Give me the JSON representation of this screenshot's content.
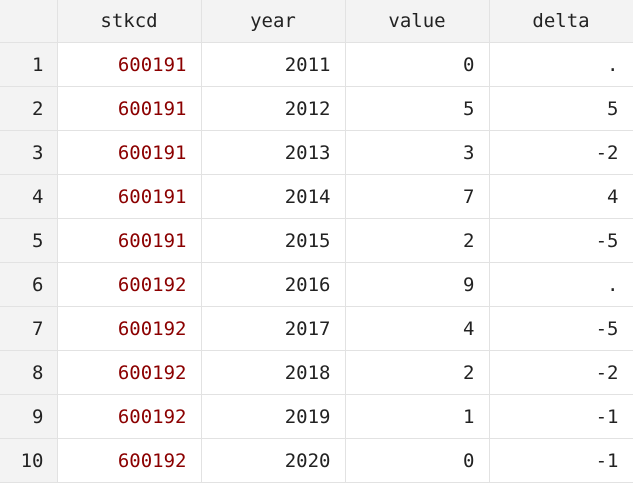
{
  "columns": [
    "stkcd",
    "year",
    "value",
    "delta"
  ],
  "rows": [
    {
      "n": "1",
      "stkcd": "600191",
      "year": "2011",
      "value": "0",
      "delta": "."
    },
    {
      "n": "2",
      "stkcd": "600191",
      "year": "2012",
      "value": "5",
      "delta": "5"
    },
    {
      "n": "3",
      "stkcd": "600191",
      "year": "2013",
      "value": "3",
      "delta": "-2"
    },
    {
      "n": "4",
      "stkcd": "600191",
      "year": "2014",
      "value": "7",
      "delta": "4"
    },
    {
      "n": "5",
      "stkcd": "600191",
      "year": "2015",
      "value": "2",
      "delta": "-5"
    },
    {
      "n": "6",
      "stkcd": "600192",
      "year": "2016",
      "value": "9",
      "delta": "."
    },
    {
      "n": "7",
      "stkcd": "600192",
      "year": "2017",
      "value": "4",
      "delta": "-5"
    },
    {
      "n": "8",
      "stkcd": "600192",
      "year": "2018",
      "value": "2",
      "delta": "-2"
    },
    {
      "n": "9",
      "stkcd": "600192",
      "year": "2019",
      "value": "1",
      "delta": "-1"
    },
    {
      "n": "10",
      "stkcd": "600192",
      "year": "2020",
      "value": "0",
      "delta": "-1"
    }
  ],
  "colors": {
    "string_value": "#8b0000",
    "header_bg": "#f3f3f3"
  }
}
